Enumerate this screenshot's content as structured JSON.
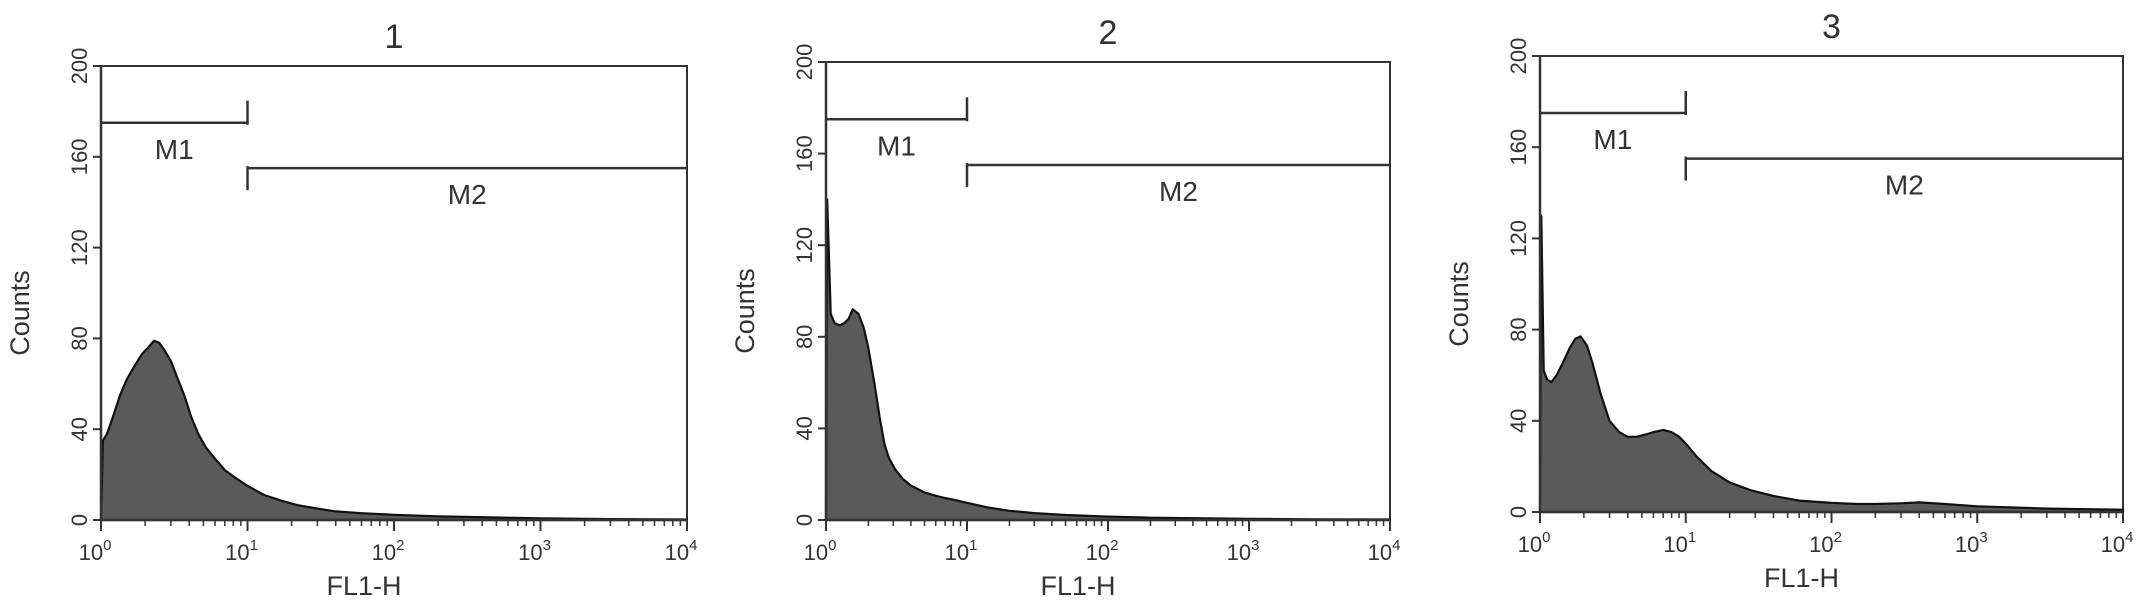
{
  "chart_data": [
    {
      "type": "area",
      "title": "1",
      "xlabel": "FL1-H",
      "ylabel": "Counts",
      "xscale": "log",
      "xlim": [
        1,
        10000
      ],
      "ylim": [
        0,
        200
      ],
      "xticks": [
        {
          "value": 1,
          "base": "10",
          "exp": "0"
        },
        {
          "value": 10,
          "base": "10",
          "exp": "1"
        },
        {
          "value": 100,
          "base": "10",
          "exp": "2"
        },
        {
          "value": 1000,
          "base": "10",
          "exp": "3"
        },
        {
          "value": 10000,
          "base": "10",
          "exp": "4"
        }
      ],
      "yticks": [
        "0",
        "40",
        "80",
        "120",
        "160",
        "200"
      ],
      "markers": [
        {
          "label": "M1",
          "from": 1,
          "to": 10,
          "level": 175
        },
        {
          "label": "M2",
          "from": 10,
          "to": 10000,
          "level": 155
        }
      ],
      "series": [
        {
          "color": "#5a5a5a",
          "x": [
            1,
            1.03,
            1.1,
            1.2,
            1.35,
            1.5,
            1.7,
            1.9,
            2.1,
            2.3,
            2.5,
            2.7,
            3.0,
            3.3,
            3.7,
            4.1,
            4.6,
            5.2,
            6.0,
            7.0,
            8.5,
            10,
            13,
            17,
            22,
            30,
            40,
            60,
            100,
            200,
            500,
            1000,
            3000,
            10000
          ],
          "y": [
            0,
            35,
            38,
            45,
            55,
            62,
            68,
            73,
            76,
            79,
            78,
            75,
            70,
            63,
            55,
            46,
            38,
            32,
            27,
            22,
            18,
            15,
            11,
            8.5,
            6.5,
            5,
            3.8,
            3,
            2.3,
            1.6,
            1.1,
            0.7,
            0.4,
            0.2
          ]
        }
      ]
    },
    {
      "type": "area",
      "title": "2",
      "xlabel": "FL1-H",
      "ylabel": "Counts",
      "xscale": "log",
      "xlim": [
        1,
        10000
      ],
      "ylim": [
        0,
        200
      ],
      "xticks": [
        {
          "value": 1,
          "base": "10",
          "exp": "0"
        },
        {
          "value": 10,
          "base": "10",
          "exp": "1"
        },
        {
          "value": 100,
          "base": "10",
          "exp": "2"
        },
        {
          "value": 1000,
          "base": "10",
          "exp": "3"
        },
        {
          "value": 10000,
          "base": "10",
          "exp": "4"
        }
      ],
      "yticks": [
        "0",
        "40",
        "80",
        "120",
        "160",
        "200"
      ],
      "markers": [
        {
          "label": "M1",
          "from": 1,
          "to": 10,
          "level": 175
        },
        {
          "label": "M2",
          "from": 10,
          "to": 10000,
          "level": 155
        }
      ],
      "series": [
        {
          "color": "#5a5a5a",
          "x": [
            1,
            1.02,
            1.08,
            1.15,
            1.25,
            1.35,
            1.45,
            1.55,
            1.7,
            1.85,
            2.0,
            2.2,
            2.4,
            2.6,
            2.8,
            3.1,
            3.5,
            4.0,
            5.0,
            6.5,
            8.5,
            10,
            14,
            20,
            30,
            50,
            100,
            200,
            500,
            1000,
            3000,
            10000
          ],
          "y": [
            0,
            140,
            90,
            86,
            85,
            86,
            88,
            92,
            90,
            84,
            75,
            60,
            45,
            33,
            27,
            22,
            18,
            15,
            12,
            10,
            8.5,
            7.5,
            5.5,
            4,
            3,
            2.2,
            1.5,
            1,
            0.7,
            0.5,
            0.3,
            0.2
          ]
        }
      ]
    },
    {
      "type": "area",
      "title": "3",
      "xlabel": "FL1-H",
      "ylabel": "Counts",
      "xscale": "log",
      "xlim": [
        1,
        10000
      ],
      "ylim": [
        0,
        200
      ],
      "xticks": [
        {
          "value": 1,
          "base": "10",
          "exp": "0"
        },
        {
          "value": 10,
          "base": "10",
          "exp": "1"
        },
        {
          "value": 100,
          "base": "10",
          "exp": "2"
        },
        {
          "value": 1000,
          "base": "10",
          "exp": "3"
        },
        {
          "value": 10000,
          "base": "10",
          "exp": "4"
        }
      ],
      "yticks": [
        "0",
        "40",
        "80",
        "120",
        "160",
        "200"
      ],
      "markers": [
        {
          "label": "M1",
          "from": 1,
          "to": 10,
          "level": 175
        },
        {
          "label": "M2",
          "from": 10,
          "to": 10000,
          "level": 155
        }
      ],
      "series": [
        {
          "color": "#5a5a5a",
          "x": [
            1,
            1.02,
            1.06,
            1.12,
            1.2,
            1.3,
            1.45,
            1.6,
            1.75,
            1.9,
            2.1,
            2.3,
            2.6,
            3.0,
            3.5,
            4.0,
            4.6,
            5.3,
            6.0,
            7.0,
            8.0,
            9.0,
            10,
            12,
            15,
            20,
            28,
            40,
            60,
            100,
            150,
            200,
            300,
            400,
            600,
            1000,
            3000,
            10000
          ],
          "y": [
            0,
            130,
            62,
            58,
            57,
            60,
            66,
            72,
            76,
            77,
            73,
            65,
            52,
            40,
            35,
            33,
            33,
            34,
            35,
            36,
            35,
            33,
            30,
            24,
            18,
            13,
            9.5,
            7,
            5,
            4,
            3.5,
            3.5,
            3.8,
            4.2,
            3.5,
            2.5,
            1.5,
            1
          ]
        }
      ]
    }
  ]
}
